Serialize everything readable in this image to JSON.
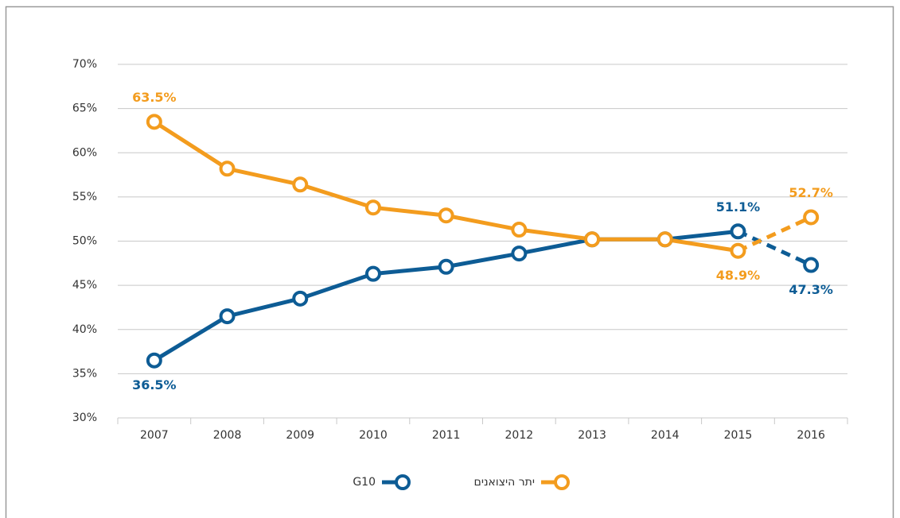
{
  "chart_data": {
    "type": "line",
    "categories": [
      "2007",
      "2008",
      "2009",
      "2010",
      "2011",
      "2012",
      "2013",
      "2014",
      "2015",
      "2016"
    ],
    "series": [
      {
        "name": "G10",
        "color": "#0d5c95",
        "values": [
          36.5,
          41.5,
          43.5,
          46.3,
          47.1,
          48.6,
          50.2,
          50.2,
          51.1,
          47.3
        ],
        "value_labels": [
          "36.5%",
          null,
          null,
          null,
          null,
          null,
          null,
          null,
          "51.1%",
          "47.3%"
        ]
      },
      {
        "name": "יתר היצואנים",
        "color": "#f39c1e",
        "values": [
          63.5,
          58.2,
          56.4,
          53.8,
          52.9,
          51.3,
          50.2,
          50.2,
          48.9,
          52.7
        ],
        "value_labels": [
          "63.5%",
          null,
          null,
          null,
          null,
          null,
          null,
          null,
          "48.9%",
          "52.7%"
        ]
      }
    ],
    "ylim": [
      30,
      70
    ],
    "yticks": [
      {
        "value": 30,
        "label": "30%"
      },
      {
        "value": 35,
        "label": "35%"
      },
      {
        "value": 40,
        "label": "40%"
      },
      {
        "value": 45,
        "label": "45%"
      },
      {
        "value": 50,
        "label": "50%"
      },
      {
        "value": 55,
        "label": "55%"
      },
      {
        "value": 60,
        "label": "60%"
      },
      {
        "value": 65,
        "label": "65%"
      },
      {
        "value": 70,
        "label": "70%"
      }
    ],
    "grid": true,
    "dashed_last_segment": true,
    "legend": "bottom"
  }
}
